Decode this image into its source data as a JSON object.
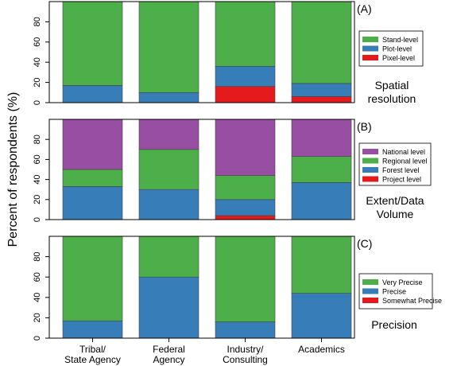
{
  "figure": {
    "ylabel": "Percent of respondents (%)",
    "categories": [
      "Tribal/\nState Agency",
      "Federal\nAgency",
      "Industry/\nConsulting",
      "Academics"
    ]
  },
  "chart_data": [
    {
      "type": "bar",
      "stacked": true,
      "panel_label": "(A)",
      "title": "Spatial\nresolution",
      "categories": [
        "Tribal/State Agency",
        "Federal Agency",
        "Industry/Consulting",
        "Academics"
      ],
      "ylim": [
        0,
        100
      ],
      "yticks": [
        0,
        20,
        40,
        60,
        80
      ],
      "legend_position": "right",
      "series": [
        {
          "name": "Pixel-level",
          "color": "#e41a1c",
          "values": [
            0,
            0,
            16,
            6
          ]
        },
        {
          "name": "Plot-level",
          "color": "#377eb8",
          "values": [
            17,
            10,
            20,
            13
          ]
        },
        {
          "name": "Stand-level",
          "color": "#4daf4a",
          "values": [
            83,
            90,
            64,
            81
          ]
        }
      ],
      "legend_order": [
        "Stand-level",
        "Plot-level",
        "Pixel-level"
      ]
    },
    {
      "type": "bar",
      "stacked": true,
      "panel_label": "(B)",
      "title": "Extent/Data\nVolume",
      "categories": [
        "Tribal/State Agency",
        "Federal Agency",
        "Industry/Consulting",
        "Academics"
      ],
      "ylim": [
        0,
        100
      ],
      "yticks": [
        0,
        20,
        40,
        60,
        80
      ],
      "legend_position": "right",
      "series": [
        {
          "name": "Project level",
          "color": "#e41a1c",
          "values": [
            0,
            0,
            4,
            0
          ]
        },
        {
          "name": "Forest level",
          "color": "#377eb8",
          "values": [
            33,
            30,
            16,
            37
          ]
        },
        {
          "name": "Regional level",
          "color": "#4daf4a",
          "values": [
            17,
            40,
            24,
            26
          ]
        },
        {
          "name": "National level",
          "color": "#984ea3",
          "values": [
            50,
            30,
            56,
            37
          ]
        }
      ],
      "legend_order": [
        "National level",
        "Regional level",
        "Forest level",
        "Project level"
      ]
    },
    {
      "type": "bar",
      "stacked": true,
      "panel_label": "(C)",
      "title": "Precision",
      "categories": [
        "Tribal/State Agency",
        "Federal Agency",
        "Industry/Consulting",
        "Academics"
      ],
      "ylim": [
        0,
        100
      ],
      "yticks": [
        0,
        20,
        40,
        60,
        80
      ],
      "legend_position": "right",
      "series": [
        {
          "name": "Somewhat Precise",
          "color": "#e41a1c",
          "values": [
            0,
            0,
            0,
            0
          ]
        },
        {
          "name": "Precise",
          "color": "#377eb8",
          "values": [
            17,
            60,
            16,
            44
          ]
        },
        {
          "name": "Very Precise",
          "color": "#4daf4a",
          "values": [
            83,
            40,
            84,
            56
          ]
        }
      ],
      "legend_order": [
        "Very Precise",
        "Precise",
        "Somewhat Precise"
      ]
    }
  ]
}
